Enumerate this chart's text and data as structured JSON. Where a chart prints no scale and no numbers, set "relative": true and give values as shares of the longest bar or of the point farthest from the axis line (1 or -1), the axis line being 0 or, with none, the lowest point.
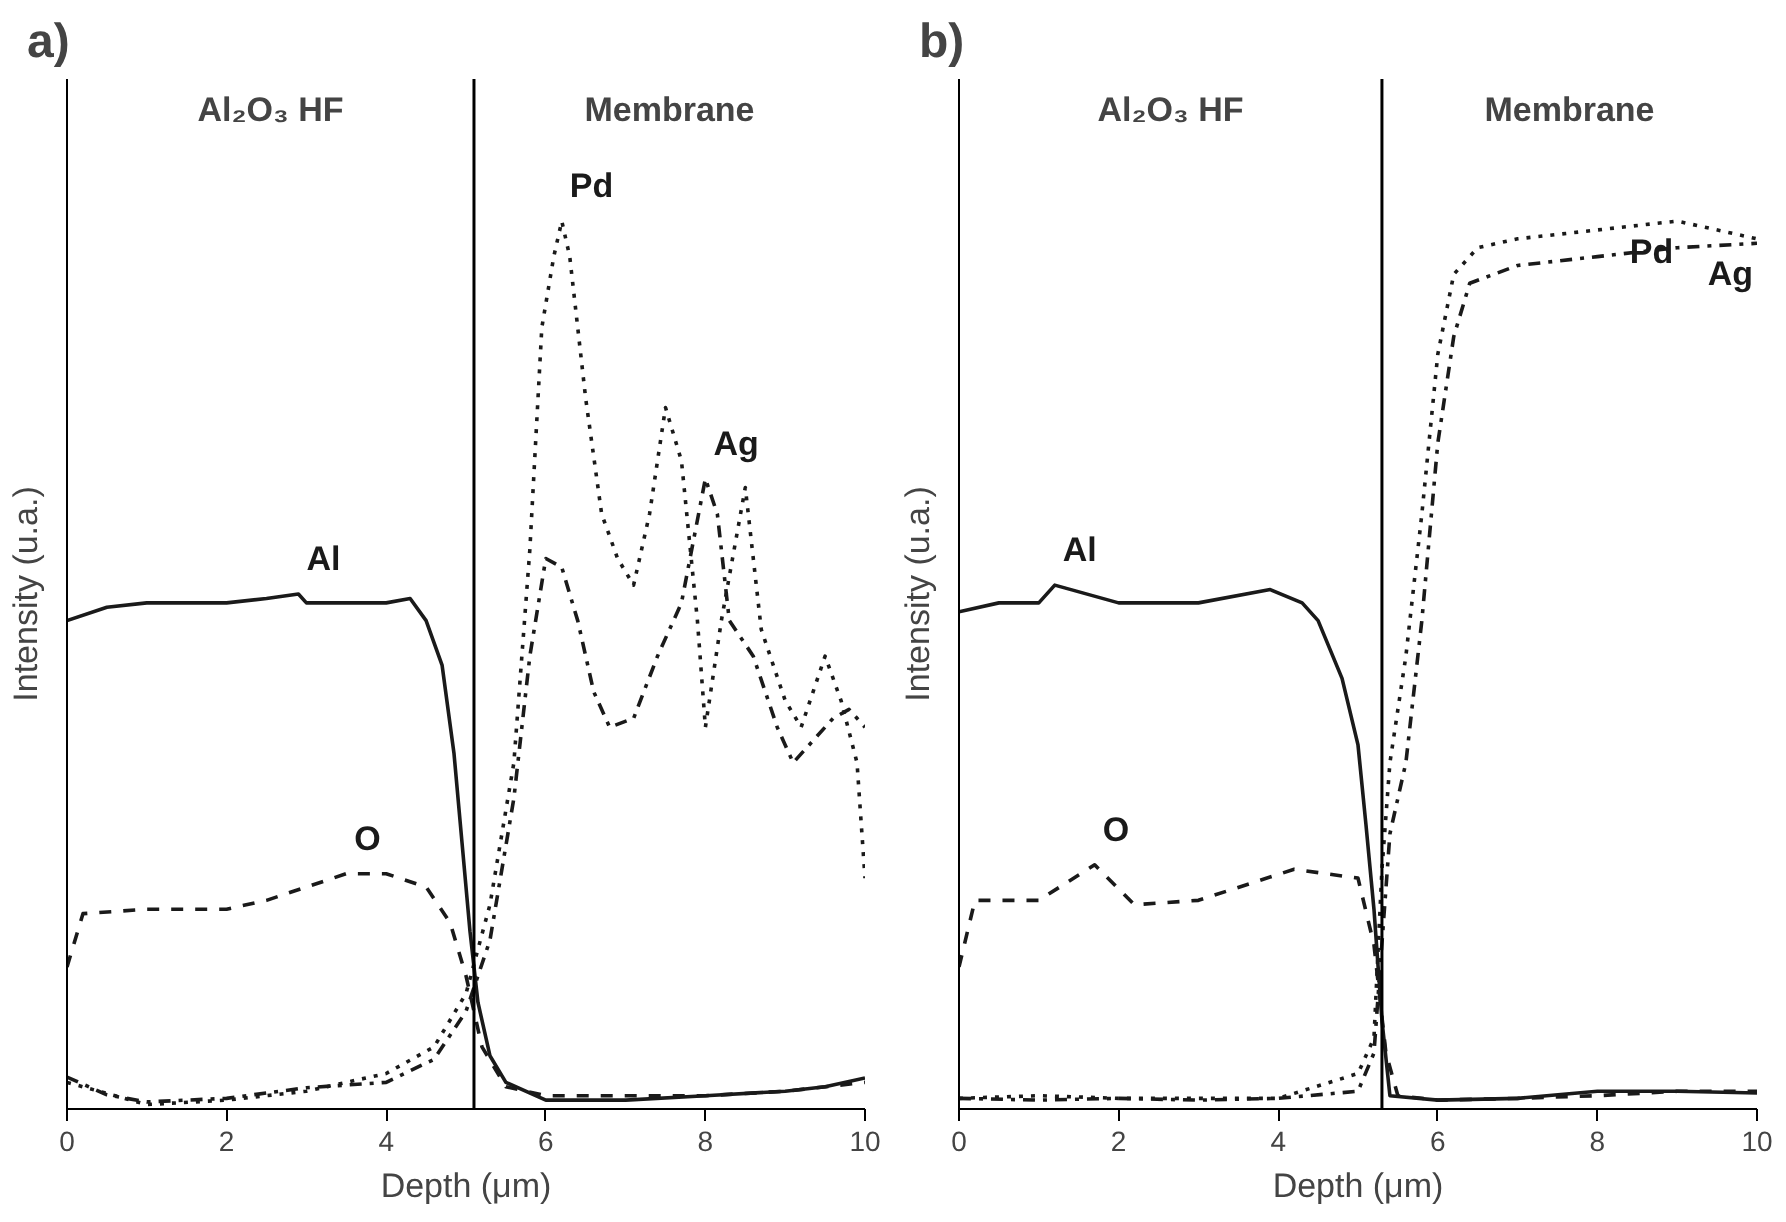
{
  "chart_data": [
    {
      "type": "line",
      "title": "a)",
      "xlabel": "Depth (μm)",
      "ylabel": "Intensity (u.a.)",
      "relative": true,
      "xlim": [
        0,
        10
      ],
      "xticks": [
        0,
        2,
        4,
        6,
        8,
        10
      ],
      "grid": false,
      "annotations": [
        "Al₂O₃ HF",
        "Membrane"
      ],
      "ref_lines": [
        {
          "axis": "x",
          "value": 5.1,
          "color": "#000000"
        }
      ],
      "series": [
        {
          "name": "Al",
          "color": "#1a1a1a",
          "line_style": "solid",
          "x": [
            0,
            0.5,
            1,
            1.5,
            2,
            2.5,
            2.9,
            3,
            3.5,
            4,
            4.3,
            4.5,
            4.7,
            4.85,
            4.95,
            5.05,
            5.15,
            5.3,
            5.5,
            6,
            7,
            8,
            9,
            9.5,
            10
          ],
          "values": [
            0.55,
            0.565,
            0.57,
            0.57,
            0.57,
            0.575,
            0.58,
            0.57,
            0.57,
            0.57,
            0.575,
            0.55,
            0.5,
            0.4,
            0.3,
            0.2,
            0.12,
            0.06,
            0.03,
            0.01,
            0.01,
            0.015,
            0.02,
            0.025,
            0.035
          ]
        },
        {
          "name": "O",
          "color": "#1a1a1a",
          "line_style": "dashed",
          "x": [
            0,
            0.2,
            1,
            2,
            2.5,
            3,
            3.5,
            4,
            4.5,
            4.8,
            5.0,
            5.2,
            5.5,
            6,
            7,
            8,
            9,
            10
          ],
          "values": [
            0.16,
            0.22,
            0.225,
            0.225,
            0.235,
            0.25,
            0.265,
            0.265,
            0.25,
            0.21,
            0.15,
            0.07,
            0.025,
            0.015,
            0.015,
            0.015,
            0.02,
            0.03
          ]
        },
        {
          "name": "Pd",
          "color": "#1a1a1a",
          "line_style": "dotted",
          "x": [
            0,
            1,
            2,
            3,
            4,
            4.6,
            5,
            5.3,
            5.6,
            5.8,
            5.95,
            6.1,
            6.2,
            6.3,
            6.5,
            6.7,
            6.9,
            7.1,
            7.3,
            7.5,
            7.7,
            7.9,
            8.0,
            8.2,
            8.5,
            8.7,
            9.0,
            9.2,
            9.5,
            9.7,
            9.9,
            10
          ],
          "values": [
            0.03,
            0.005,
            0.01,
            0.02,
            0.04,
            0.07,
            0.13,
            0.23,
            0.39,
            0.63,
            0.88,
            0.96,
            1.0,
            0.96,
            0.8,
            0.67,
            0.62,
            0.59,
            0.67,
            0.79,
            0.73,
            0.55,
            0.43,
            0.55,
            0.7,
            0.54,
            0.46,
            0.43,
            0.51,
            0.46,
            0.39,
            0.26
          ]
        },
        {
          "name": "Ag",
          "color": "#1a1a1a",
          "line_style": "dashdot",
          "x": [
            0,
            0.5,
            1,
            2,
            3,
            4,
            4.6,
            5,
            5.3,
            5.6,
            5.8,
            6.0,
            6.2,
            6.4,
            6.6,
            6.8,
            7.1,
            7.4,
            7.7,
            8.0,
            8.15,
            8.3,
            8.6,
            8.9,
            9.1,
            9.3,
            9.6,
            9.8,
            10
          ],
          "values": [
            0.036,
            0.016,
            0.008,
            0.012,
            0.024,
            0.03,
            0.056,
            0.11,
            0.19,
            0.35,
            0.51,
            0.62,
            0.61,
            0.55,
            0.47,
            0.43,
            0.44,
            0.51,
            0.57,
            0.71,
            0.67,
            0.55,
            0.51,
            0.43,
            0.39,
            0.41,
            0.44,
            0.45,
            0.43
          ]
        }
      ]
    },
    {
      "type": "line",
      "title": "b)",
      "xlabel": "Depth (μm)",
      "ylabel": "Intensity (u.a.)",
      "relative": true,
      "xlim": [
        0,
        10
      ],
      "xticks": [
        0,
        2,
        4,
        6,
        8,
        10
      ],
      "grid": false,
      "annotations": [
        "Al₂O₃ HF",
        "Membrane"
      ],
      "ref_lines": [
        {
          "axis": "x",
          "value": 5.3,
          "color": "#000000"
        }
      ],
      "series": [
        {
          "name": "Al",
          "color": "#1a1a1a",
          "line_style": "solid",
          "x": [
            0,
            0.5,
            1,
            1.2,
            2,
            3,
            3.9,
            4.3,
            4.5,
            4.8,
            5.0,
            5.1,
            5.2,
            5.3,
            5.4,
            6,
            7,
            8,
            9,
            10
          ],
          "values": [
            0.56,
            0.57,
            0.57,
            0.59,
            0.57,
            0.57,
            0.585,
            0.57,
            0.55,
            0.485,
            0.41,
            0.32,
            0.225,
            0.1,
            0.015,
            0.01,
            0.012,
            0.02,
            0.02,
            0.018
          ]
        },
        {
          "name": "O",
          "color": "#1a1a1a",
          "line_style": "dashed",
          "x": [
            0,
            0.2,
            1,
            1.7,
            2.2,
            3,
            4.2,
            5.0,
            5.2,
            5.35,
            5.5,
            6,
            7,
            8,
            9,
            10
          ],
          "values": [
            0.16,
            0.235,
            0.235,
            0.275,
            0.23,
            0.235,
            0.27,
            0.26,
            0.185,
            0.063,
            0.015,
            0.01,
            0.012,
            0.015,
            0.02,
            0.02
          ]
        },
        {
          "name": "Pd",
          "color": "#1a1a1a",
          "line_style": "dotted",
          "x": [
            0,
            1,
            2,
            3,
            4,
            5.0,
            5.2,
            5.3,
            5.4,
            5.6,
            5.8,
            6.0,
            6.2,
            6.5,
            7,
            8,
            9,
            10
          ],
          "values": [
            0.012,
            0.015,
            0.012,
            0.012,
            0.012,
            0.04,
            0.08,
            0.27,
            0.39,
            0.51,
            0.67,
            0.85,
            0.94,
            0.97,
            0.98,
            0.99,
            1.0,
            0.98
          ]
        },
        {
          "name": "Ag",
          "color": "#1a1a1a",
          "line_style": "dashdot",
          "x": [
            0,
            1,
            2,
            3,
            4,
            5.0,
            5.2,
            5.4,
            5.6,
            5.8,
            6.0,
            6.2,
            6.4,
            7,
            8,
            9,
            10
          ],
          "values": [
            0.012,
            0.01,
            0.012,
            0.01,
            0.012,
            0.02,
            0.063,
            0.31,
            0.39,
            0.55,
            0.75,
            0.87,
            0.93,
            0.95,
            0.96,
            0.97,
            0.975
          ]
        }
      ]
    }
  ]
}
